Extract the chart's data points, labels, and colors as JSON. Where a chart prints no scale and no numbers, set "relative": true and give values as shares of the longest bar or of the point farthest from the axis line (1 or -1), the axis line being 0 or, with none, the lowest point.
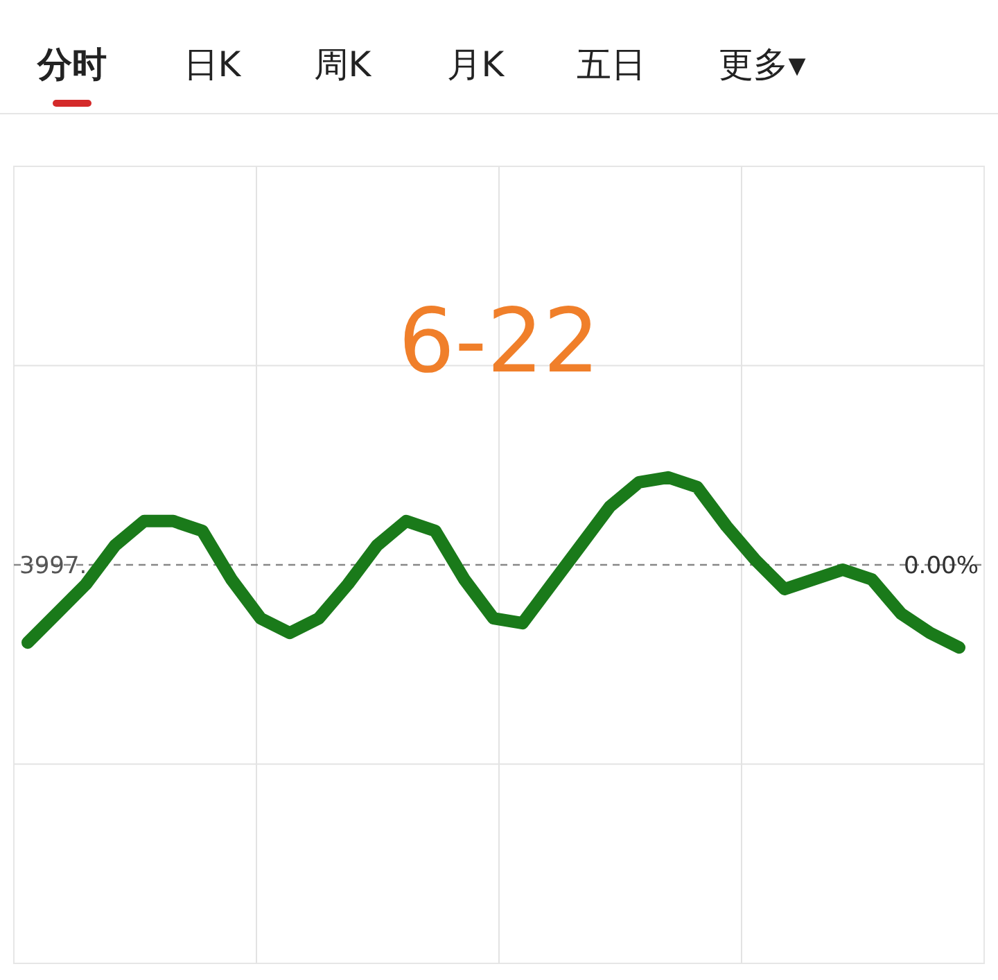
{
  "chart_data": {
    "type": "line",
    "title": "6-22",
    "relative": true,
    "grid": true,
    "color": "#1a7a1a",
    "categories": [
      null,
      null,
      null,
      null,
      null,
      null,
      null,
      null,
      null,
      null,
      null,
      null,
      null,
      null,
      null,
      null,
      null,
      null,
      null,
      null,
      null,
      null,
      null,
      null,
      null,
      null,
      null,
      null,
      null,
      null,
      null,
      null,
      null
    ],
    "values": [
      0.66,
      0.72,
      0.78,
      0.86,
      0.91,
      0.91,
      0.89,
      0.79,
      0.71,
      0.68,
      0.71,
      0.78,
      0.86,
      0.91,
      0.89,
      0.79,
      0.71,
      0.7,
      0.78,
      0.86,
      0.94,
      0.99,
      1,
      0.98,
      0.9,
      0.83,
      0.77,
      0.79,
      0.81,
      0.79,
      0.72,
      0.68,
      0.65
    ],
    "ref_lines": [
      {
        "axis": "y",
        "value": 0.82,
        "line_style": "dashed",
        "color": "#888888"
      }
    ],
    "annotations": [
      "分时",
      "日K",
      "周K",
      "月K",
      "五日",
      "更多▾",
      {
        "text": "3997.",
        "y": 0.82
      },
      {
        "text": "0.00%",
        "y": 0.82
      }
    ]
  }
}
